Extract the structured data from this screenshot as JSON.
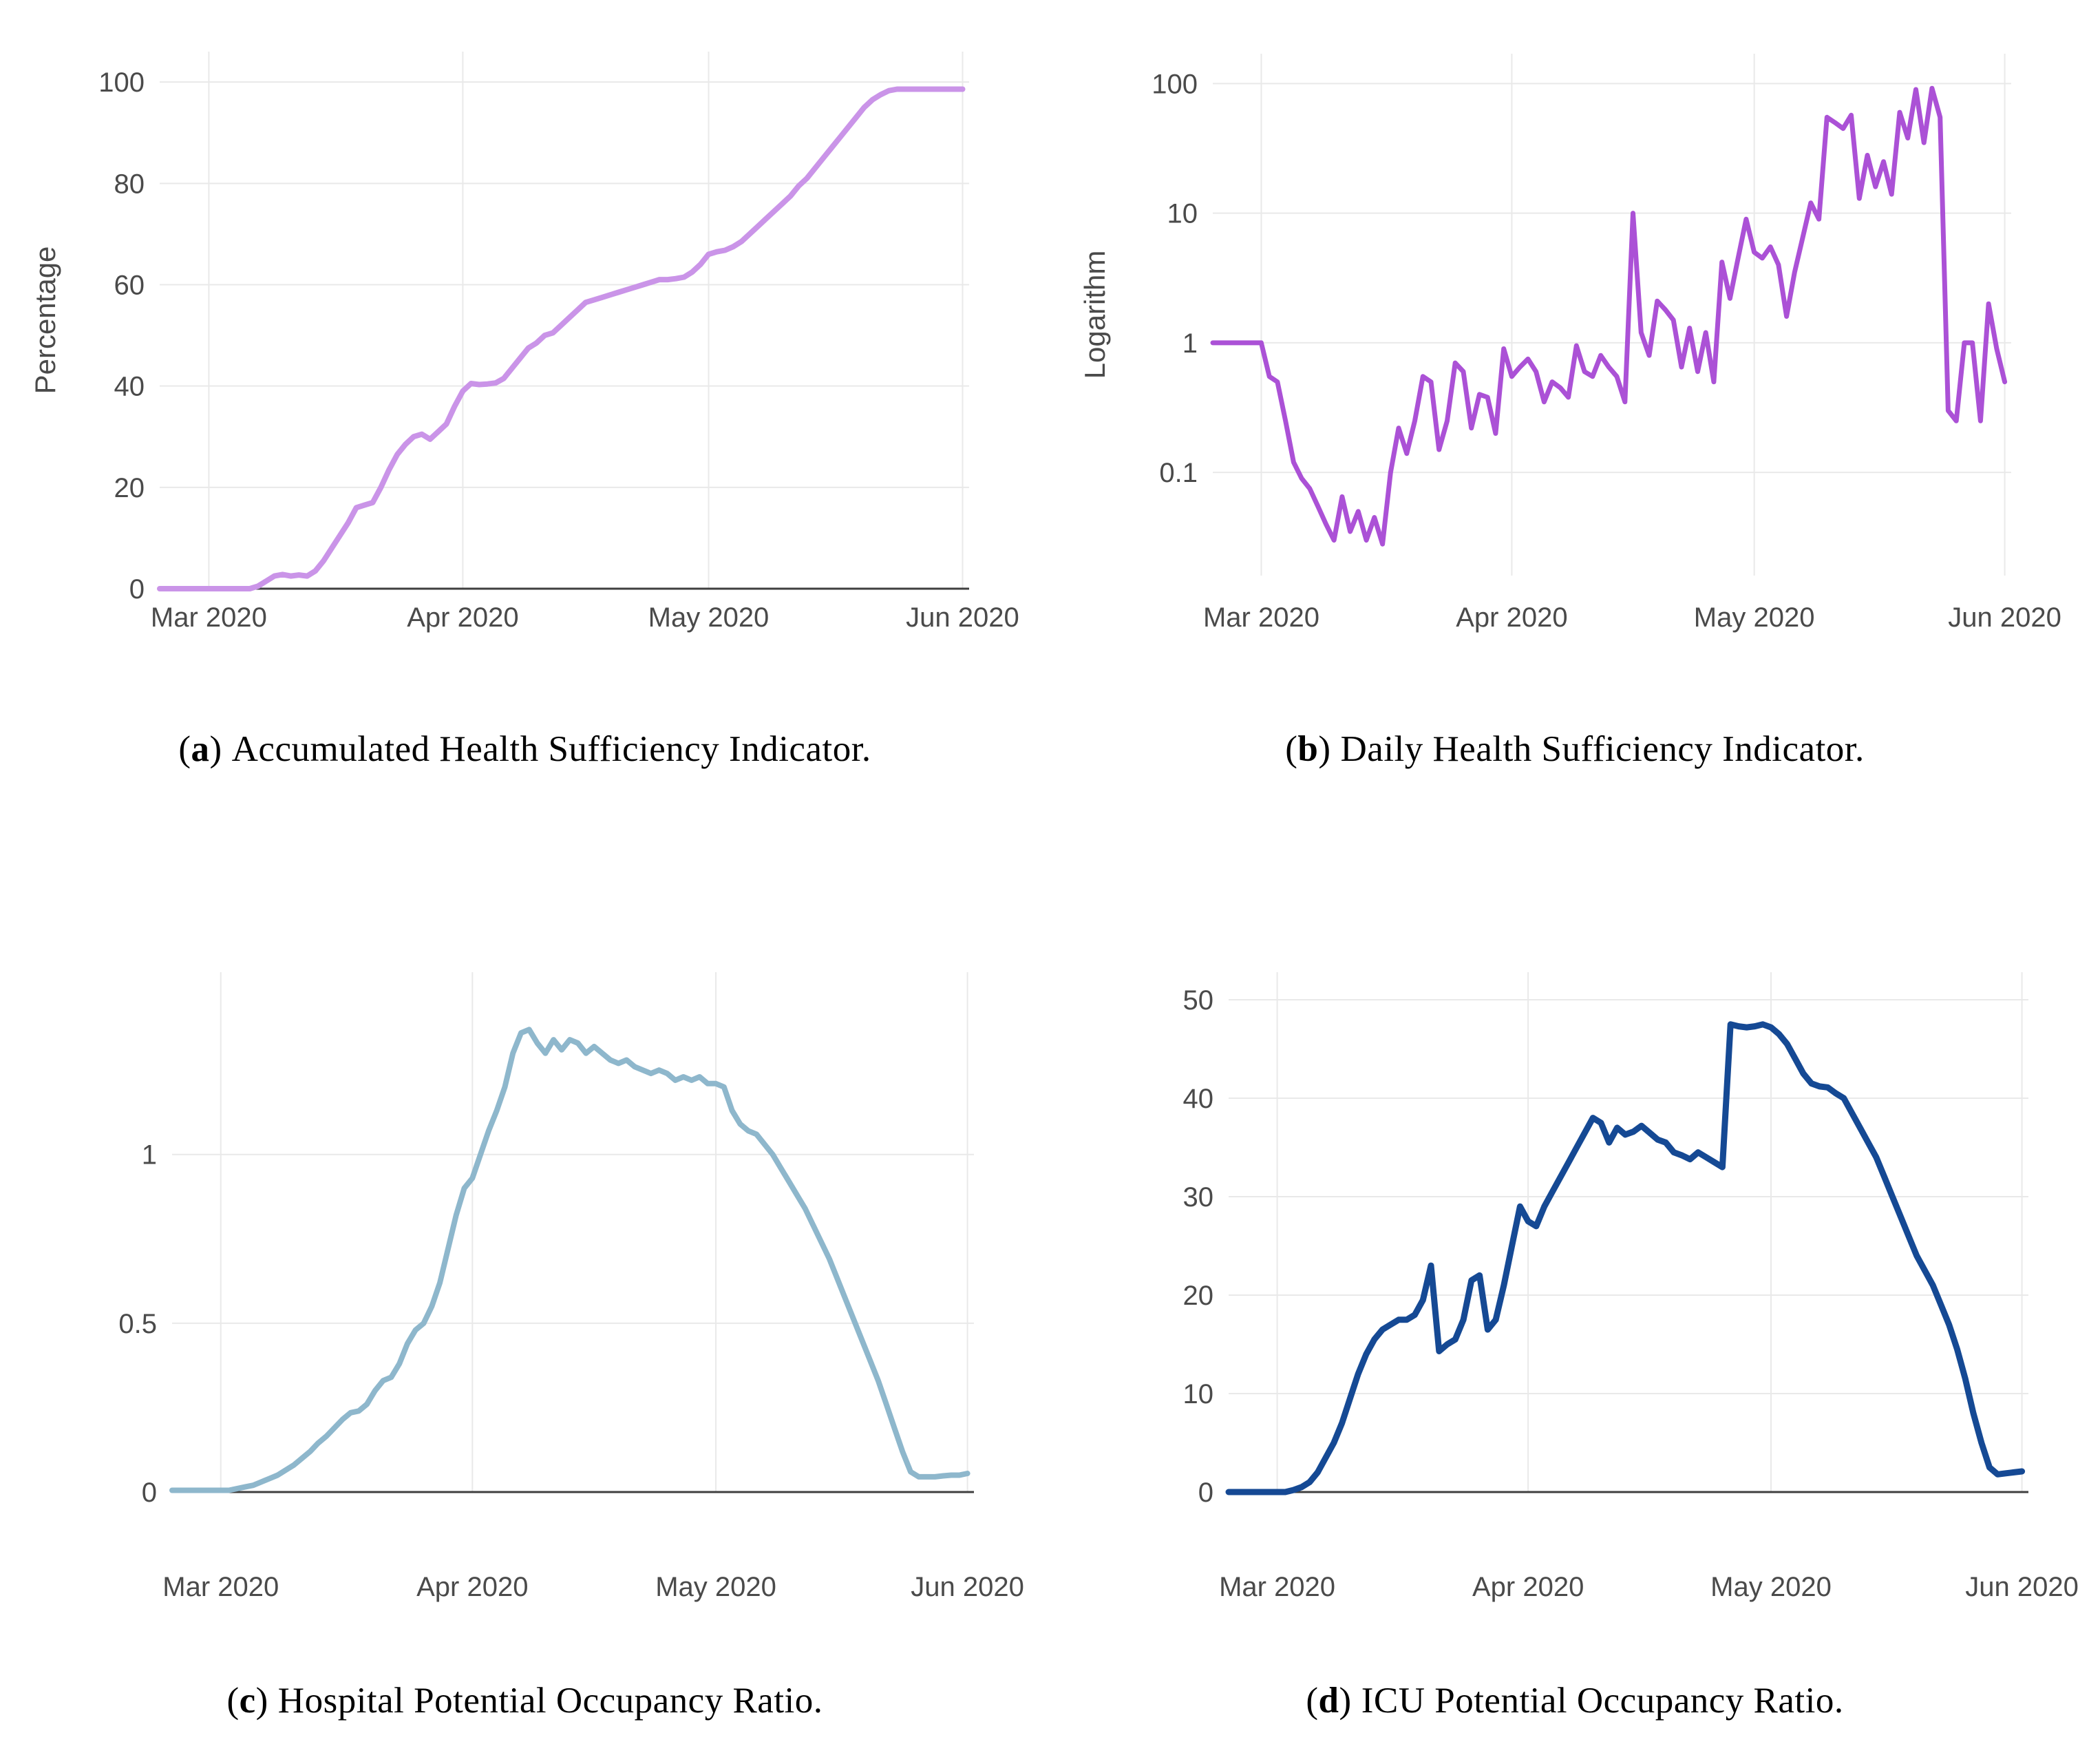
{
  "style": {
    "background": "#ffffff",
    "grid_color": "#e9e9e9",
    "axis_line_color": "#3f3f3f",
    "tick_label_color": "#4a4a4a",
    "axis_title_color": "#4a4a4a",
    "caption_color": "#000000"
  },
  "captions": [
    {
      "open": "(",
      "letter": "a",
      "close": ")",
      "text": "Accumulated Health Sufficiency Indicator."
    },
    {
      "open": "(",
      "letter": "b",
      "close": ")",
      "text": "Daily Health Sufficiency Indicator."
    },
    {
      "open": "(",
      "letter": "c",
      "close": ")",
      "text": "Hospital Potential Occupancy Ratio."
    },
    {
      "open": "(",
      "letter": "d",
      "close": ")",
      "text": "ICU Potential Occupancy Ratio."
    }
  ],
  "chart_data": [
    {
      "id": "a",
      "type": "line",
      "title": "",
      "ylabel": "Percentage",
      "xlabel": "",
      "line_color": "#ca94e8",
      "yscale": "linear",
      "ylim": [
        0,
        106
      ],
      "xlim": [
        0,
        98.8
      ],
      "grid": true,
      "zero_baseline": true,
      "x_unit": "days since 2020-02-24",
      "x_start": 0,
      "x_step": 1,
      "xtick_positions": [
        6,
        37,
        67,
        98
      ],
      "xtick_labels": [
        "Mar 2020",
        "Apr 2020",
        "May 2020",
        "Jun 2020"
      ],
      "ytick_values": [
        0,
        20,
        40,
        60,
        80,
        100
      ],
      "ytick_labels": [
        "0",
        "20",
        "40",
        "60",
        "80",
        "100"
      ],
      "y": [
        0,
        0,
        0,
        0,
        0,
        0,
        0,
        0,
        0,
        0,
        0,
        0,
        0.5,
        1.5,
        2.5,
        2.8,
        2.5,
        2.7,
        2.5,
        3.5,
        5.5,
        8,
        10.5,
        13,
        16,
        16.5,
        17,
        20,
        23.5,
        26.5,
        28.5,
        30,
        30.5,
        29.5,
        31,
        32.5,
        36,
        39,
        40.5,
        40.3,
        40.4,
        40.6,
        41.5,
        43.5,
        45.5,
        47.5,
        48.5,
        50,
        50.5,
        52,
        53.5,
        55,
        56.5,
        57,
        57.5,
        58,
        58.5,
        59,
        59.5,
        60,
        60.5,
        61,
        61,
        61.2,
        61.5,
        62.5,
        64,
        66,
        66.5,
        66.8,
        67.5,
        68.5,
        70,
        71.5,
        73,
        74.5,
        76,
        77.5,
        79.5,
        81,
        83,
        85,
        87,
        89,
        91,
        93,
        95,
        96.5,
        97.5,
        98.3,
        98.6,
        98.6,
        98.6,
        98.6,
        98.6,
        98.6,
        98.6,
        98.6,
        98.6
      ]
    },
    {
      "id": "b",
      "type": "line",
      "title": "",
      "ylabel": "Logarithm",
      "xlabel": "",
      "line_color": "#ab51d6",
      "yscale": "log",
      "ylim": [
        0.016,
        170
      ],
      "xlim": [
        0,
        98.8
      ],
      "grid": true,
      "zero_baseline": false,
      "x_unit": "days since 2020-02-24",
      "x_start": 0,
      "x_step": 1,
      "xtick_positions": [
        6,
        37,
        67,
        98
      ],
      "xtick_labels": [
        "Mar 2020",
        "Apr 2020",
        "May 2020",
        "Jun 2020"
      ],
      "ytick_values": [
        0.1,
        1,
        10,
        100
      ],
      "ytick_labels": [
        "0.1",
        "1",
        "10",
        "100"
      ],
      "y": [
        1,
        1,
        1,
        1,
        1,
        1,
        1,
        0.55,
        0.5,
        0.25,
        0.12,
        0.09,
        0.075,
        0.055,
        0.04,
        0.03,
        0.065,
        0.035,
        0.05,
        0.03,
        0.045,
        0.028,
        0.1,
        0.22,
        0.14,
        0.25,
        0.55,
        0.5,
        0.15,
        0.25,
        0.7,
        0.6,
        0.22,
        0.4,
        0.38,
        0.2,
        0.9,
        0.55,
        0.65,
        0.75,
        0.6,
        0.35,
        0.5,
        0.45,
        0.38,
        0.95,
        0.6,
        0.55,
        0.8,
        0.65,
        0.55,
        0.35,
        10,
        1.2,
        0.8,
        2.1,
        1.8,
        1.5,
        0.65,
        1.3,
        0.6,
        1.2,
        0.5,
        4.2,
        2.2,
        4.5,
        9,
        5,
        4.5,
        5.5,
        4,
        1.6,
        3.5,
        6.5,
        12,
        9,
        55,
        50,
        45,
        57,
        13,
        28,
        16,
        25,
        14,
        60,
        38,
        90,
        35,
        92,
        55,
        0.3,
        0.25,
        1,
        1,
        0.25,
        2,
        0.9,
        0.5
      ]
    },
    {
      "id": "c",
      "type": "line",
      "title": "",
      "ylabel": "",
      "xlabel": "",
      "line_color": "#8eb7cc",
      "yscale": "linear",
      "ylim": [
        0,
        1.54
      ],
      "xlim": [
        0,
        98.8
      ],
      "grid": true,
      "zero_baseline": true,
      "x_unit": "days since 2020-02-24",
      "x_start": 0,
      "x_step": 1,
      "xtick_positions": [
        6,
        37,
        67,
        98
      ],
      "xtick_labels": [
        "Mar 2020",
        "Apr 2020",
        "May 2020",
        "Jun 2020"
      ],
      "ytick_values": [
        0,
        0.5,
        1
      ],
      "ytick_labels": [
        "0",
        "0.5",
        "1"
      ],
      "y": [
        0.005,
        0.005,
        0.005,
        0.005,
        0.005,
        0.005,
        0.005,
        0.005,
        0.01,
        0.015,
        0.02,
        0.03,
        0.04,
        0.05,
        0.065,
        0.08,
        0.1,
        0.12,
        0.145,
        0.165,
        0.19,
        0.215,
        0.235,
        0.24,
        0.26,
        0.3,
        0.33,
        0.34,
        0.38,
        0.44,
        0.48,
        0.5,
        0.55,
        0.62,
        0.72,
        0.82,
        0.9,
        0.93,
        1.0,
        1.07,
        1.13,
        1.2,
        1.3,
        1.36,
        1.37,
        1.33,
        1.3,
        1.34,
        1.31,
        1.34,
        1.33,
        1.3,
        1.32,
        1.3,
        1.28,
        1.27,
        1.28,
        1.26,
        1.25,
        1.24,
        1.25,
        1.24,
        1.22,
        1.23,
        1.22,
        1.23,
        1.21,
        1.21,
        1.2,
        1.13,
        1.09,
        1.07,
        1.06,
        1.03,
        1.0,
        0.96,
        0.92,
        0.88,
        0.84,
        0.79,
        0.74,
        0.69,
        0.63,
        0.57,
        0.51,
        0.45,
        0.39,
        0.33,
        0.26,
        0.19,
        0.12,
        0.06,
        0.045,
        0.045,
        0.045,
        0.048,
        0.05,
        0.05,
        0.055
      ]
    },
    {
      "id": "d",
      "type": "line",
      "title": "",
      "ylabel": "",
      "xlabel": "",
      "line_color": "#154994",
      "yscale": "linear",
      "ylim": [
        0,
        52.8
      ],
      "xlim": [
        0,
        98.8
      ],
      "grid": true,
      "zero_baseline": true,
      "x_unit": "days since 2020-02-24",
      "x_start": 0,
      "x_step": 1,
      "xtick_positions": [
        6,
        37,
        67,
        98
      ],
      "xtick_labels": [
        "Mar 2020",
        "Apr 2020",
        "May 2020",
        "Jun 2020"
      ],
      "ytick_values": [
        0,
        10,
        20,
        30,
        40,
        50
      ],
      "ytick_labels": [
        "0",
        "10",
        "20",
        "30",
        "40",
        "50"
      ],
      "y": [
        0,
        0,
        0,
        0,
        0,
        0,
        0,
        0,
        0.2,
        0.5,
        1,
        2,
        3.5,
        5,
        7,
        9.5,
        12,
        14,
        15.5,
        16.5,
        17,
        17.5,
        17.5,
        18,
        19.5,
        23,
        14.3,
        15,
        15.5,
        17.5,
        21.5,
        22,
        16.5,
        17.5,
        21,
        25,
        29,
        27.5,
        27,
        29,
        30.5,
        32,
        33.5,
        35,
        36.5,
        38,
        37.5,
        35.5,
        37,
        36.3,
        36.6,
        37.2,
        36.5,
        35.8,
        35.5,
        34.5,
        34.2,
        33.8,
        34.5,
        34,
        33.5,
        33,
        47.5,
        47.3,
        47.2,
        47.3,
        47.5,
        47.2,
        46.5,
        45.5,
        44,
        42.5,
        41.5,
        41.2,
        41.1,
        40.5,
        40,
        38.5,
        37,
        35.5,
        34,
        32,
        30,
        28,
        26,
        24,
        22.5,
        21,
        19,
        17,
        14.5,
        11.5,
        8,
        5,
        2.5,
        1.8,
        1.9,
        2,
        2.1
      ]
    }
  ]
}
